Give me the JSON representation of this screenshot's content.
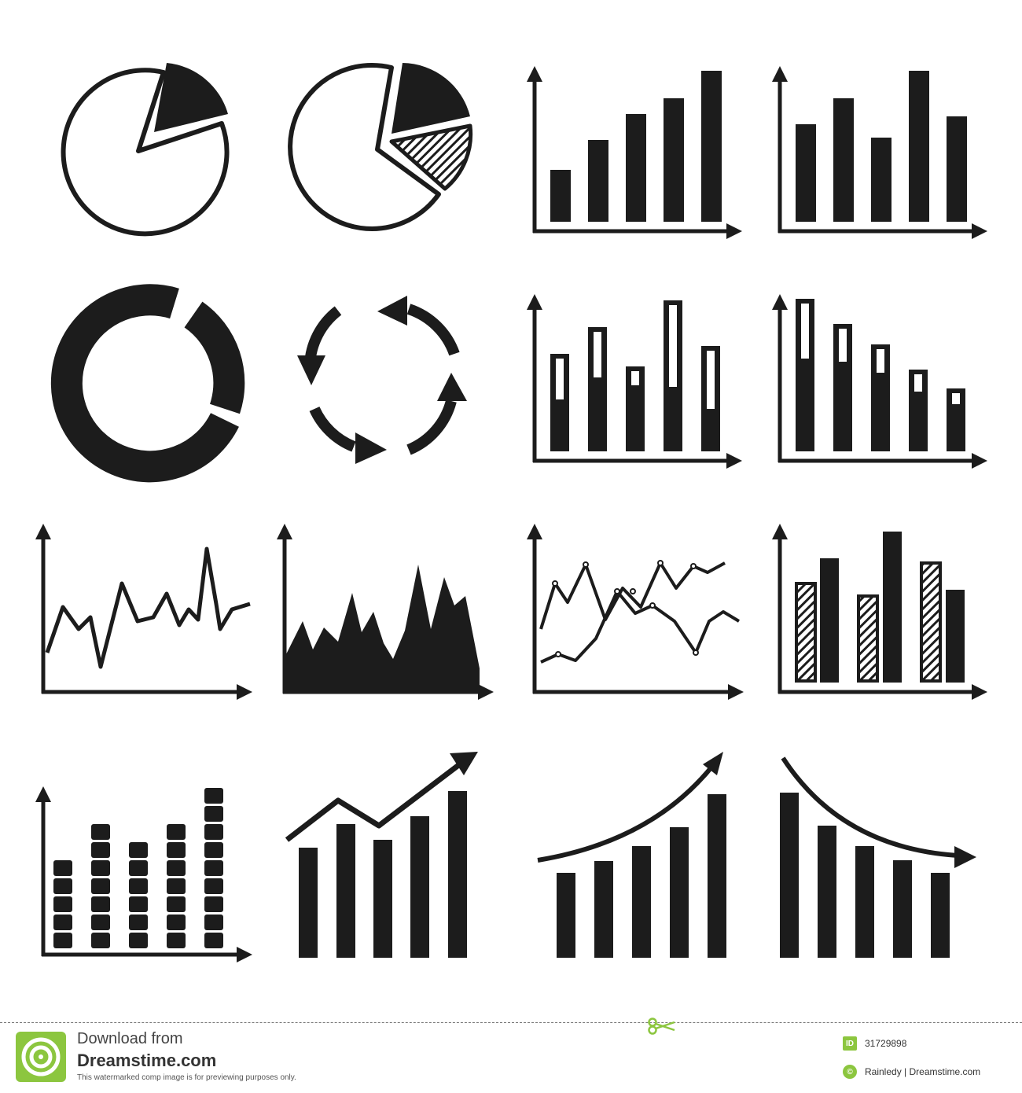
{
  "icons": [
    {
      "name": "pie-chart-one-slice-icon"
    },
    {
      "name": "pie-chart-two-slices-icon"
    },
    {
      "name": "bar-chart-ascending-icon"
    },
    {
      "name": "bar-chart-mixed-icon"
    },
    {
      "name": "donut-chart-icon"
    },
    {
      "name": "cycle-arrows-icon"
    },
    {
      "name": "bar-chart-highlighted-icon"
    },
    {
      "name": "bar-chart-descending-highlighted-icon"
    },
    {
      "name": "line-chart-icon"
    },
    {
      "name": "area-chart-icon"
    },
    {
      "name": "two-line-chart-icon"
    },
    {
      "name": "bar-chart-striped-icon"
    },
    {
      "name": "stacked-blocks-chart-icon"
    },
    {
      "name": "bar-chart-trend-up-icon"
    },
    {
      "name": "bar-chart-curve-up-icon"
    },
    {
      "name": "bar-chart-curve-down-icon"
    }
  ],
  "footer": {
    "download_text": "Download from",
    "brand": "Dreamstime.com",
    "notice": "This watermarked comp image is for previewing purposes only.",
    "id_badge": "ID",
    "image_id": "31729898",
    "author_badge": "©",
    "author": "Rainledy | Dreamstime.com",
    "accent_color": "#8cc63f"
  }
}
